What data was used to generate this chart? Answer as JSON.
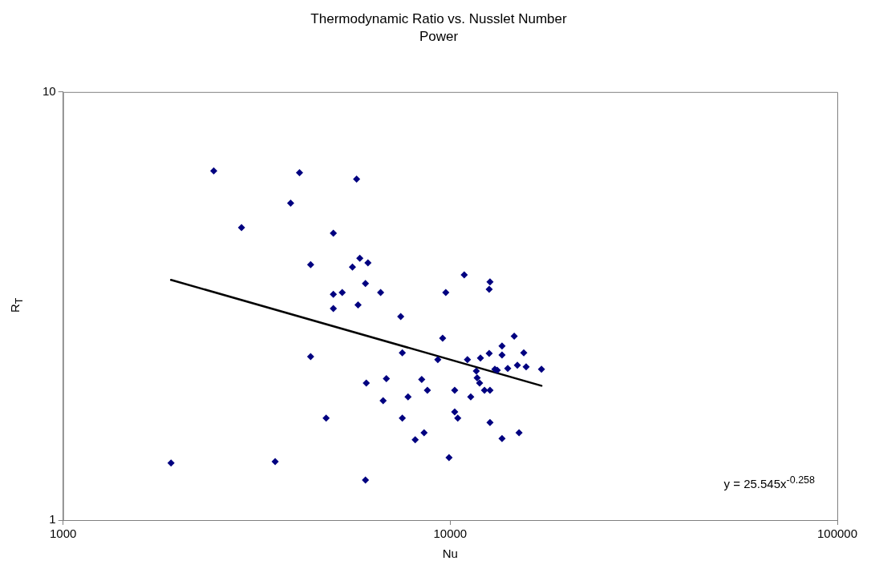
{
  "chart_data": {
    "type": "scatter",
    "title": "Thermodynamic Ratio vs. Nusslet Number",
    "subtitle": "Power",
    "xlabel": "Nu",
    "ylabel": "R$_{T}$",
    "annotations": [
      "y = 25.545x$^{-0.258}$"
    ],
    "log": "xy",
    "grid": false,
    "legend": false,
    "marker": "diamond",
    "xlim": [
      1000,
      100000
    ],
    "xticks": [
      1000,
      10000,
      100000
    ],
    "ylim": [
      1,
      10
    ],
    "yticks": [
      1,
      10
    ],
    "series": [
      {
        "color": "#000080",
        "x": [
          1900,
          2450,
          2890,
          3530,
          3870,
          4080,
          4360,
          4360,
          4780,
          4990,
          4990,
          4990,
          5260,
          5590,
          5730,
          5780,
          5840,
          6040,
          6040,
          6070,
          6130,
          6610,
          6710,
          6840,
          7450,
          7520,
          7520,
          7780,
          8120,
          8440,
          8560,
          8730,
          9290,
          9560,
          9740,
          9930,
          10270,
          10270,
          10460,
          10870,
          11080,
          11300,
          11680,
          11740,
          11910,
          11970,
          12260,
          12610,
          12610,
          12670,
          12670,
          12670,
          13040,
          13230,
          13610,
          13610,
          13610,
          14080,
          14630,
          14910,
          15060,
          15490,
          15710,
          17210
        ],
        "values": [
          1.36,
          6.54,
          4.82,
          1.37,
          5.5,
          6.48,
          3.95,
          2.41,
          1.73,
          3.37,
          3.12,
          4.68,
          3.4,
          3.9,
          6.26,
          3.18,
          4.09,
          3.57,
          1.24,
          2.09,
          3.99,
          3.4,
          1.9,
          2.14,
          2.99,
          2.46,
          1.73,
          1.94,
          1.54,
          2.13,
          1.6,
          2.01,
          2.37,
          2.66,
          3.4,
          1.4,
          2.01,
          1.79,
          1.73,
          3.74,
          2.37,
          1.94,
          2.23,
          2.15,
          2.09,
          2.39,
          2.01,
          2.45,
          3.46,
          3.6,
          2.01,
          1.69,
          2.25,
          2.24,
          2.55,
          2.43,
          1.55,
          2.26,
          2.69,
          2.3,
          1.6,
          2.46,
          2.28,
          2.25
        ]
      },
      {
        "type": "line",
        "marker": "none",
        "color": "#000000",
        "x": [
          1900,
          17210
        ],
        "values": [
          3.64,
          2.06
        ]
      }
    ]
  }
}
